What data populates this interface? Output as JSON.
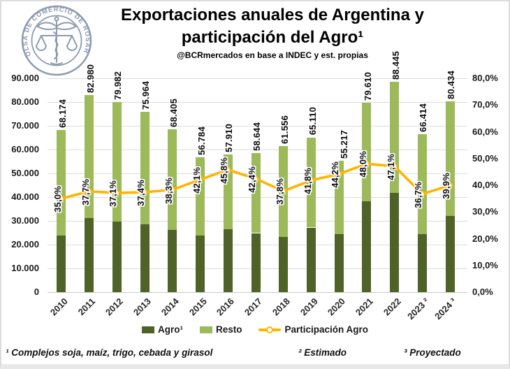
{
  "header": {
    "title_line1": "Exportaciones anuales de Argentina y",
    "title_line2": "participación del Agro¹",
    "subtitle": "@BCRmercados en base a INDEC y est. propias"
  },
  "logo": {
    "ring_text": "BOLSA DE COMERCIO DE ROSARIO",
    "color": "#8d9ab1"
  },
  "chart_data": {
    "type": "bar",
    "subtype": "stacked-bars-with-percentage-line",
    "categories": [
      "2010",
      "2011",
      "2012",
      "2013",
      "2014",
      "2015",
      "2016",
      "2017",
      "2018",
      "2019",
      "2020",
      "2021",
      "2022",
      "2023 ²",
      "2024 ³"
    ],
    "totals": [
      68174,
      82980,
      79982,
      75964,
      68405,
      56784,
      57910,
      58644,
      61556,
      65110,
      55217,
      79610,
      88445,
      66414,
      80434
    ],
    "total_labels": [
      "68.174",
      "82.980",
      "79.982",
      "75.964",
      "68.405",
      "56.784",
      "57.910",
      "58.644",
      "61.556",
      "65.110",
      "55.217",
      "79.610",
      "88.445",
      "66.414",
      "80.434"
    ],
    "participation_pct": [
      35.0,
      37.7,
      37.1,
      37.4,
      38.3,
      42.1,
      45.8,
      42.4,
      37.8,
      41.8,
      44.2,
      48.0,
      47.1,
      36.7,
      39.9
    ],
    "pct_labels": [
      "35,0%",
      "37,7%",
      "37,1%",
      "37,4%",
      "38,3%",
      "42,1%",
      "45,8%",
      "42,4%",
      "37,8%",
      "41,8%",
      "44,2%",
      "48,0%",
      "47,1%",
      "36,7%",
      "39,9%"
    ],
    "series": [
      {
        "name": "Agro¹",
        "type": "bar-stack-bottom",
        "color": "#4f6228",
        "values": [
          23861,
          31283,
          29673,
          28411,
          26199,
          23906,
          26523,
          24865,
          23268,
          27216,
          24406,
          38213,
          41658,
          24374,
          32093
        ]
      },
      {
        "name": "Resto",
        "type": "bar-stack-top",
        "color": "#9cba59",
        "values": [
          44313,
          51697,
          50309,
          47553,
          42206,
          32878,
          31387,
          33779,
          38288,
          37894,
          30811,
          41397,
          46787,
          42040,
          48341
        ]
      },
      {
        "name": "Participación Agro",
        "type": "line",
        "axis": "right",
        "color": "#ffb400"
      }
    ],
    "left_axis": {
      "min": 0,
      "max": 90000,
      "step": 10000,
      "labels": [
        "0",
        "10.000",
        "20.000",
        "30.000",
        "40.000",
        "50.000",
        "60.000",
        "70.000",
        "80.000",
        "90.000"
      ]
    },
    "right_axis": {
      "min": 0,
      "max": 80,
      "step": 10,
      "labels": [
        "0,0%",
        "10,0%",
        "20,0%",
        "30,0%",
        "40,0%",
        "50,0%",
        "60,0%",
        "70,0%",
        "80,0%"
      ]
    },
    "grid": true,
    "legend_position": "bottom"
  },
  "legend": {
    "agro": "Agro¹",
    "resto": "Resto",
    "participacion": "Participación Agro"
  },
  "footnotes": {
    "f1": "¹ Complejos soja, maíz, trigo, cebada y girasol",
    "f2": "² Estimado",
    "f3": "³ Proyectado"
  },
  "colors": {
    "agro": "#4f6228",
    "resto": "#9cba59",
    "line": "#ffb400",
    "grid": "#dcdcdc",
    "axis_text": "#1a1a1a"
  }
}
